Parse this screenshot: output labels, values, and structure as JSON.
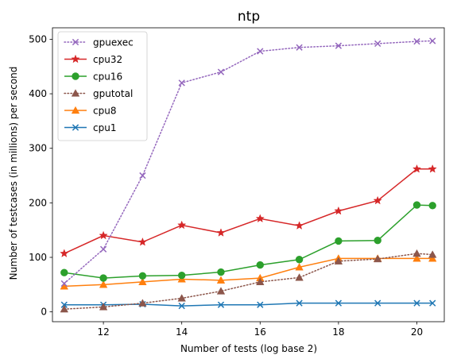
{
  "chart_data": {
    "type": "line",
    "title": "ntp",
    "xlabel": "Number of tests (log base 2)",
    "ylabel": "Number of testcases (in millions) per second",
    "x": [
      11,
      12,
      13,
      14,
      15,
      16,
      17,
      18,
      19,
      20,
      20.4
    ],
    "xlim": [
      10.7,
      20.7
    ],
    "ylim": [
      -18,
      521
    ],
    "xticks": [
      12,
      14,
      16,
      18,
      20
    ],
    "yticks": [
      0,
      100,
      200,
      300,
      400,
      500
    ],
    "grid": false,
    "legend_position": "top-left",
    "series": [
      {
        "name": "gpuexec",
        "color": "#9467bd",
        "marker": "x",
        "dash": "dotted",
        "values": [
          52,
          115,
          250,
          420,
          440,
          478,
          485,
          488,
          492,
          496,
          497
        ]
      },
      {
        "name": "cpu32",
        "color": "#d62728",
        "marker": "star",
        "dash": "solid",
        "values": [
          107,
          140,
          128,
          159,
          145,
          171,
          158,
          185,
          204,
          262,
          262
        ]
      },
      {
        "name": "cpu16",
        "color": "#2ca02c",
        "marker": "circle",
        "dash": "solid",
        "values": [
          72,
          62,
          66,
          67,
          73,
          86,
          96,
          130,
          131,
          196,
          195
        ]
      },
      {
        "name": "gputotal",
        "color": "#8c564b",
        "marker": "triangle",
        "dash": "dotted",
        "values": [
          5,
          9,
          16,
          25,
          38,
          55,
          63,
          93,
          97,
          107,
          105
        ]
      },
      {
        "name": "cpu8",
        "color": "#ff7f0e",
        "marker": "triangle",
        "dash": "solid",
        "values": [
          47,
          50,
          55,
          60,
          58,
          62,
          82,
          98,
          98,
          98,
          98
        ]
      },
      {
        "name": "cpu1",
        "color": "#1f77b4",
        "marker": "x",
        "dash": "solid",
        "values": [
          13,
          13,
          14,
          11,
          13,
          13,
          16,
          16,
          16,
          16,
          16
        ]
      }
    ]
  }
}
